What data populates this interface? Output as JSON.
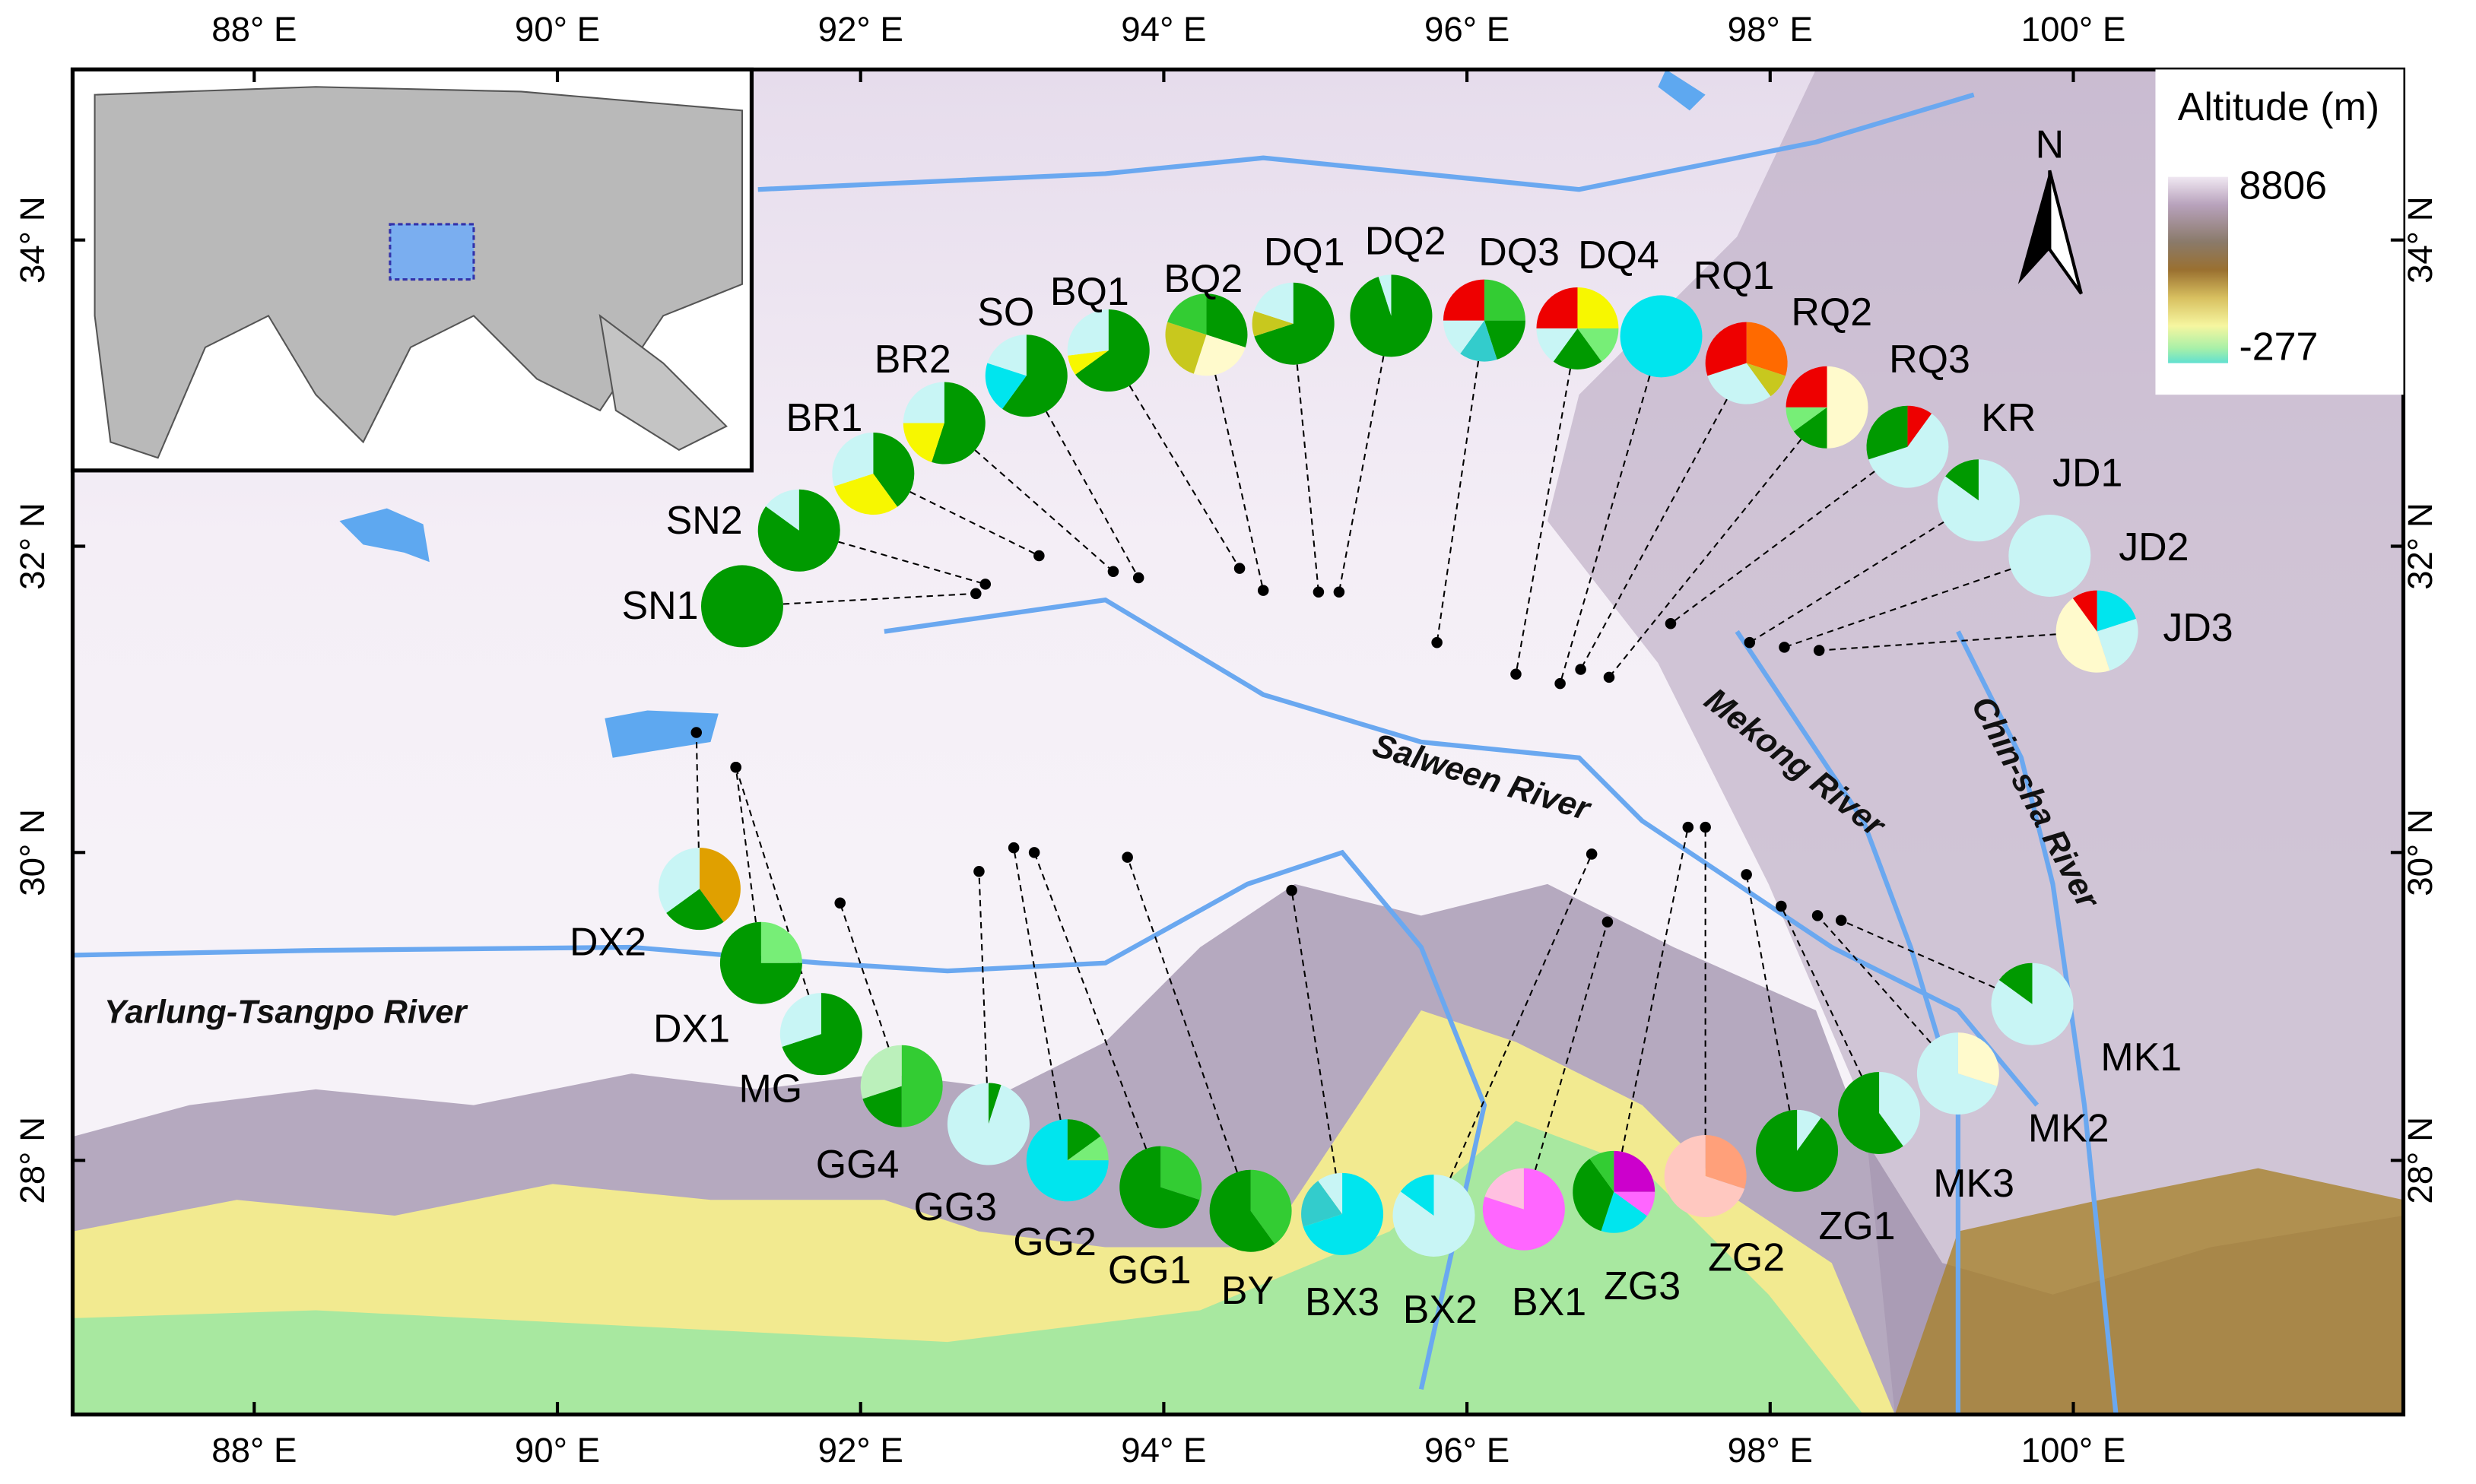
{
  "map": {
    "x_axis_labels": [
      "88° E",
      "90° E",
      "92° E",
      "94° E",
      "96° E",
      "98° E",
      "100° E"
    ],
    "y_axis_labels": [
      "34° N",
      "32° N",
      "30° N",
      "28° N"
    ],
    "rivers": [
      "Salween River",
      "Mekong River",
      "Chin-sha River",
      "Yarlung-Tsangpo River"
    ],
    "legend": {
      "title": "Altitude (m)",
      "max": "8806",
      "min": "-277"
    },
    "north": "N",
    "sites": [
      {
        "name": "SN1",
        "values": [
          100
        ],
        "colors": [
          "#009a00"
        ]
      },
      {
        "name": "SN2",
        "values": [
          85,
          15
        ],
        "colors": [
          "#009a00",
          "#c8f5f5"
        ]
      },
      {
        "name": "BR1",
        "values": [
          40,
          30,
          30
        ],
        "colors": [
          "#009a00",
          "#f7f700",
          "#c8f5f5"
        ]
      },
      {
        "name": "BR2",
        "values": [
          55,
          20,
          25
        ],
        "colors": [
          "#009a00",
          "#f7f700",
          "#c8f5f5"
        ]
      },
      {
        "name": "SO",
        "values": [
          60,
          20,
          20
        ],
        "colors": [
          "#009a00",
          "#00e5ee",
          "#c8f5f5"
        ]
      },
      {
        "name": "BQ1",
        "values": [
          65,
          8,
          27
        ],
        "colors": [
          "#009a00",
          "#f7f700",
          "#c8f5f5"
        ]
      },
      {
        "name": "BQ2",
        "values": [
          30,
          25,
          25,
          20
        ],
        "colors": [
          "#009a00",
          "#fffacc",
          "#c8c81e",
          "#33cc33"
        ]
      },
      {
        "name": "DQ1",
        "values": [
          70,
          10,
          20
        ],
        "colors": [
          "#009a00",
          "#c8c81e",
          "#c8f5f5"
        ]
      },
      {
        "name": "DQ2",
        "values": [
          95,
          5
        ],
        "colors": [
          "#009a00",
          "#c8f5f5"
        ]
      },
      {
        "name": "DQ3",
        "values": [
          25,
          20,
          15,
          15,
          25
        ],
        "colors": [
          "#33cc33",
          "#009a00",
          "#33cccc",
          "#c8f5f5",
          "#ee0000"
        ]
      },
      {
        "name": "DQ4",
        "values": [
          25,
          15,
          20,
          15,
          25
        ],
        "colors": [
          "#f7f700",
          "#77ee77",
          "#009a00",
          "#c8f5f5",
          "#ee0000"
        ]
      },
      {
        "name": "RQ1",
        "values": [
          100
        ],
        "colors": [
          "#00e5ee"
        ]
      },
      {
        "name": "RQ2",
        "values": [
          30,
          10,
          30,
          30
        ],
        "colors": [
          "#ff6a00",
          "#c8c81e",
          "#c8f5f5",
          "#ee0000"
        ]
      },
      {
        "name": "RQ3",
        "values": [
          50,
          15,
          10,
          25
        ],
        "colors": [
          "#fffacc",
          "#009a00",
          "#77ee77",
          "#ee0000"
        ]
      },
      {
        "name": "KR",
        "values": [
          10,
          60,
          30
        ],
        "colors": [
          "#ee0000",
          "#c8f5f5",
          "#009a00"
        ]
      },
      {
        "name": "JD1",
        "values": [
          85,
          15
        ],
        "colors": [
          "#c8f5f5",
          "#009a00"
        ]
      },
      {
        "name": "JD2",
        "values": [
          100
        ],
        "colors": [
          "#c8f5f5"
        ]
      },
      {
        "name": "JD3",
        "values": [
          20,
          25,
          45,
          10
        ],
        "colors": [
          "#00e5ee",
          "#c8f5f5",
          "#fffacc",
          "#ee0000"
        ]
      },
      {
        "name": "MK1",
        "values": [
          85,
          15
        ],
        "colors": [
          "#c8f5f5",
          "#009a00"
        ]
      },
      {
        "name": "MK2",
        "values": [
          30,
          70
        ],
        "colors": [
          "#fffacc",
          "#c8f5f5"
        ]
      },
      {
        "name": "MK3",
        "values": [
          40,
          60
        ],
        "colors": [
          "#c8f5f5",
          "#009a00"
        ]
      },
      {
        "name": "ZG1",
        "values": [
          10,
          90
        ],
        "colors": [
          "#c8f5f5",
          "#009a00"
        ]
      },
      {
        "name": "ZG2",
        "values": [
          30,
          70
        ],
        "colors": [
          "#ffa07a",
          "#ffc8c0"
        ]
      },
      {
        "name": "ZG3",
        "values": [
          25,
          10,
          20,
          35,
          10
        ],
        "colors": [
          "#cc00cc",
          "#ff66ff",
          "#00e5ee",
          "#009a00",
          "#33cc33"
        ]
      },
      {
        "name": "BX1",
        "values": [
          80,
          20
        ],
        "colors": [
          "#ff66ff",
          "#ffc0e0"
        ]
      },
      {
        "name": "BX2",
        "values": [
          85,
          15
        ],
        "colors": [
          "#c8f5f5",
          "#00e5ee"
        ]
      },
      {
        "name": "BX3",
        "values": [
          70,
          20,
          10
        ],
        "colors": [
          "#00e5ee",
          "#33cccc",
          "#c8f5f5"
        ]
      },
      {
        "name": "BY",
        "values": [
          40,
          60
        ],
        "colors": [
          "#33cc33",
          "#009a00"
        ]
      },
      {
        "name": "GG1",
        "values": [
          30,
          70
        ],
        "colors": [
          "#33cc33",
          "#009a00"
        ]
      },
      {
        "name": "GG2",
        "values": [
          15,
          10,
          75
        ],
        "colors": [
          "#009a00",
          "#77ee77",
          "#00e5ee"
        ]
      },
      {
        "name": "GG3",
        "values": [
          5,
          95
        ],
        "colors": [
          "#009a00",
          "#c8f5f5"
        ]
      },
      {
        "name": "GG4",
        "values": [
          50,
          20,
          30
        ],
        "colors": [
          "#33cc33",
          "#009a00",
          "#bbf0bb"
        ]
      },
      {
        "name": "MG",
        "values": [
          70,
          30
        ],
        "colors": [
          "#009a00",
          "#c8f5f5"
        ]
      },
      {
        "name": "DX1",
        "values": [
          25,
          75
        ],
        "colors": [
          "#77ee77",
          "#009a00"
        ]
      },
      {
        "name": "DX2",
        "values": [
          40,
          25,
          35
        ],
        "colors": [
          "#e0a000",
          "#009a00",
          "#c8f5f5"
        ]
      }
    ]
  }
}
